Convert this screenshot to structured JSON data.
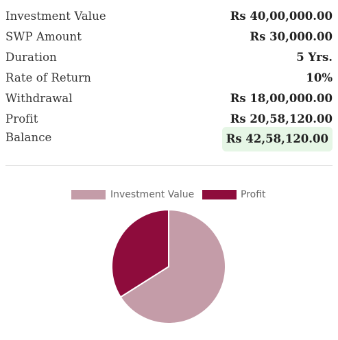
{
  "summary": {
    "rows": [
      {
        "label": "Investment Value",
        "value": "Rs 40,00,000.00"
      },
      {
        "label": "SWP Amount",
        "value": "Rs 30,000.00"
      },
      {
        "label": "Duration",
        "value": "5 Yrs."
      },
      {
        "label": "Rate of Return",
        "value": "10%"
      },
      {
        "label": "Withdrawal",
        "value": "Rs 18,00,000.00"
      },
      {
        "label": "Profit",
        "value": "Rs 20,58,120.00"
      },
      {
        "label": "Balance",
        "value": "Rs 42,58,120.00"
      }
    ]
  },
  "colors": {
    "investment": "#c49ca8",
    "profit": "#8e0c3c",
    "balance_highlight": "#e6f6e6"
  },
  "chart_data": {
    "type": "pie",
    "categories": [
      "Investment Value",
      "Profit"
    ],
    "values": [
      4000000,
      2058120
    ],
    "legend_position": "top"
  }
}
